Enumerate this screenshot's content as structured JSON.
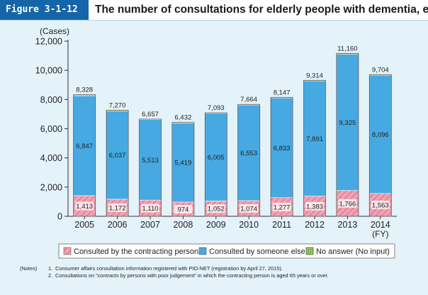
{
  "header": {
    "figure_label": "Figure 3-1-12",
    "title": "The number of consultations for elderly people with dementia, etc."
  },
  "colors": {
    "background": "#e4f2fa",
    "header_label_bg": "#1565a8",
    "contracting_person": "#f0a2b2",
    "someone_else": "#46a9e2",
    "no_answer": "#a8d86e"
  },
  "chart_data": {
    "type": "bar",
    "stacked": true,
    "y_unit_label": "(Cases)",
    "x_unit_label": "(FY)",
    "ylim": [
      0,
      12000
    ],
    "yticks": [
      "0",
      "2,000",
      "4,000",
      "6,000",
      "8,000",
      "10,000",
      "12,000"
    ],
    "categories": [
      "2005",
      "2006",
      "2007",
      "2008",
      "2009",
      "2010",
      "2011",
      "2012",
      "2013",
      "2014"
    ],
    "totals": [
      8328,
      7270,
      6657,
      6432,
      7093,
      7664,
      8147,
      9314,
      11160,
      9704
    ],
    "total_labels": [
      "8,328",
      "7,270",
      "6,657",
      "6,432",
      "7,093",
      "7,664",
      "8,147",
      "9,314",
      "11,160",
      "9,704"
    ],
    "series": [
      {
        "name": "Consulted by the contracting person",
        "values": [
          1413,
          1172,
          1110,
          974,
          1052,
          1074,
          1277,
          1383,
          1766,
          1563
        ],
        "labels": [
          "1,413",
          "1,172",
          "1,110",
          "974",
          "1,052",
          "1,074",
          "1,277",
          "1,383",
          "1,766",
          "1,563"
        ]
      },
      {
        "name": "Consulted by someone else",
        "values": [
          6847,
          6037,
          5513,
          5419,
          6005,
          6553,
          6833,
          7891,
          9325,
          8096
        ],
        "labels": [
          "6,847",
          "6,037",
          "5,513",
          "5,419",
          "6,005",
          "6,553",
          "6,833",
          "7,891",
          "9,325",
          "8,096"
        ]
      },
      {
        "name": "No answer (No input)",
        "values": [
          68,
          61,
          34,
          39,
          36,
          37,
          37,
          40,
          69,
          45
        ]
      }
    ],
    "legend_position": "bottom"
  },
  "notes": {
    "prefix": "(Notes)",
    "items": [
      {
        "num": "1.",
        "text": "Consumer affairs consultation information registered with PIO-NET (registration by April 27, 2015)."
      },
      {
        "num": "2.",
        "text": "Consultations on “contracts by persons with poor judgement” in which the contracting person is aged 65 years or over."
      }
    ]
  }
}
